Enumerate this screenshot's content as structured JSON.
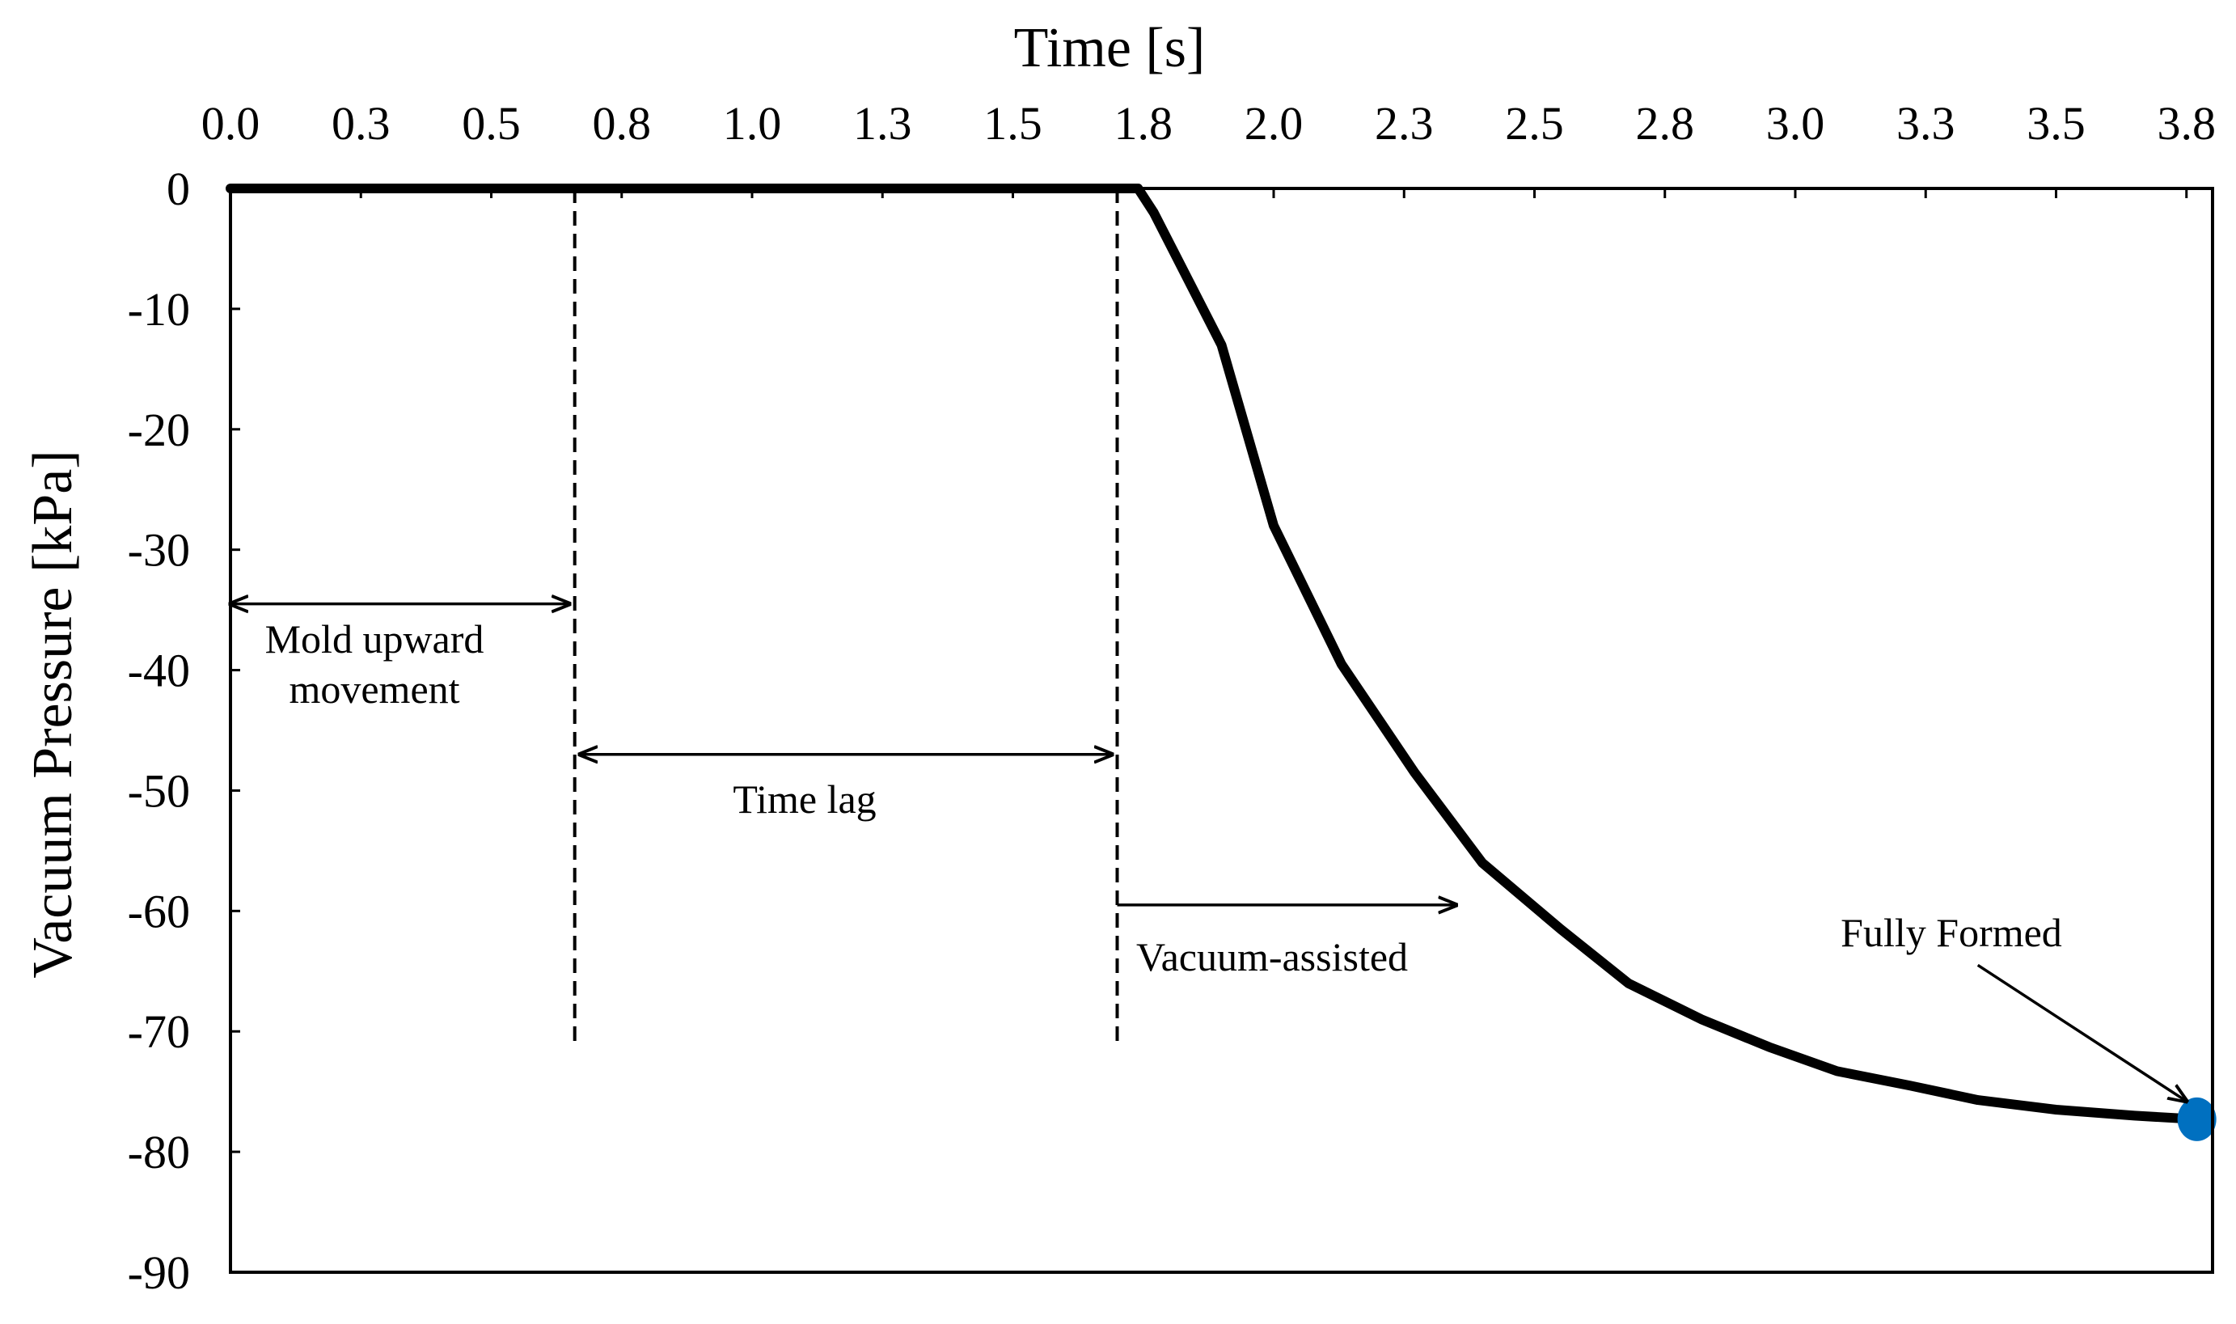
{
  "chart_data": {
    "type": "line",
    "title": "",
    "xlabel": "Time [s]",
    "ylabel": "Vacuum Pressure [kPa]",
    "xlim": [
      0,
      3.8
    ],
    "ylim": [
      -90,
      0
    ],
    "x_axis_position": "top",
    "x_ticks": [
      0,
      0.25,
      0.5,
      0.75,
      1.0,
      1.25,
      1.5,
      1.75,
      2.0,
      2.25,
      2.5,
      2.75,
      3.0,
      3.25,
      3.5,
      3.75
    ],
    "x_tick_labels": [
      "0.0",
      "0.3",
      "0.5",
      "0.8",
      "1.0",
      "1.3",
      "1.5",
      "1.8",
      "2.0",
      "2.3",
      "2.5",
      "2.8",
      "3.0",
      "3.3",
      "3.5",
      "3.8"
    ],
    "y_ticks": [
      0,
      -10,
      -20,
      -30,
      -40,
      -50,
      -60,
      -70,
      -80,
      -90
    ],
    "y_tick_labels": [
      "0",
      "-10",
      "-20",
      "-30",
      "-40",
      "-50",
      "-60",
      "-70",
      "-80",
      "-90"
    ],
    "grid": false,
    "legend": "none",
    "series": [
      {
        "color": "#000000",
        "x": [
          0.0,
          0.5,
          1.0,
          1.5,
          1.74,
          1.77,
          1.9,
          2.0,
          2.13,
          2.27,
          2.4,
          2.55,
          2.68,
          2.82,
          2.95,
          3.08,
          3.22,
          3.35,
          3.5,
          3.65,
          3.77
        ],
        "y": [
          0,
          0,
          0,
          0,
          0,
          -2,
          -13,
          -28,
          -39.5,
          -48.5,
          -56,
          -61.5,
          -66,
          -69,
          -71.3,
          -73.3,
          -74.5,
          -75.7,
          -76.5,
          -77,
          -77.3
        ]
      }
    ],
    "markers": [
      {
        "x": 3.77,
        "y": -77.3,
        "color": "#0070C0",
        "label": "Fully Formed"
      }
    ],
    "vlines": [
      {
        "x": 0.66,
        "ymin": -71,
        "ymax": 0,
        "style": "dashed"
      },
      {
        "x": 1.7,
        "ymin": -71,
        "ymax": 0,
        "style": "dashed"
      }
    ],
    "annotations": [
      {
        "id": "mold",
        "lines": [
          "Mold upward",
          "movement"
        ],
        "arrow_from": [
          0.0,
          -34.5
        ],
        "arrow_to": [
          0.65,
          -34.5
        ],
        "double_headed": true
      },
      {
        "id": "timelag",
        "lines": [
          "Time lag"
        ],
        "arrow_from": [
          0.67,
          -47
        ],
        "arrow_to": [
          1.69,
          -47
        ],
        "double_headed": true
      },
      {
        "id": "vacuum",
        "lines": [
          "Vacuum-assisted"
        ],
        "arrow_from": [
          1.7,
          -59.5
        ],
        "arrow_to": [
          2.35,
          -59.5
        ],
        "double_headed": false
      },
      {
        "id": "fully",
        "lines": [
          "Fully Formed"
        ],
        "arrow_from": [
          3.35,
          -64.5
        ],
        "arrow_to": [
          3.75,
          -75.8
        ],
        "double_headed": false
      }
    ]
  }
}
